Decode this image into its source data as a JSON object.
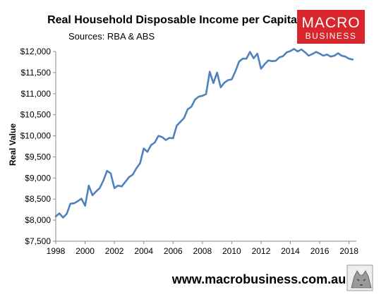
{
  "chart_data": {
    "type": "line",
    "title": "Real Household Disposable Income per Capita",
    "subtitle": "Sources: RBA & ABS",
    "ylabel": "Real Value",
    "xlabel": "",
    "xlim": [
      1998,
      2018.5
    ],
    "ylim": [
      7500,
      12000
    ],
    "x_ticks": [
      1998,
      2000,
      2002,
      2004,
      2006,
      2008,
      2010,
      2012,
      2014,
      2016,
      2018
    ],
    "y_ticks": [
      7500,
      8000,
      8500,
      9000,
      9500,
      10000,
      10500,
      11000,
      11500,
      12000
    ],
    "y_tick_labels": [
      "$7,500",
      "$8,000",
      "$8,500",
      "$9,000",
      "$9,500",
      "$10,000",
      "$10,500",
      "$11,000",
      "$11,500",
      "$12,000"
    ],
    "grid": false,
    "legend": "none",
    "series": [
      {
        "color": "#4f81bd",
        "x": [
          1998.0,
          1998.25,
          1998.5,
          1998.75,
          1999.0,
          1999.25,
          1999.5,
          1999.75,
          2000.0,
          2000.25,
          2000.5,
          2000.75,
          2001.0,
          2001.25,
          2001.5,
          2001.75,
          2002.0,
          2002.25,
          2002.5,
          2002.75,
          2003.0,
          2003.25,
          2003.5,
          2003.75,
          2004.0,
          2004.25,
          2004.5,
          2004.75,
          2005.0,
          2005.25,
          2005.5,
          2005.75,
          2006.0,
          2006.25,
          2006.5,
          2006.75,
          2007.0,
          2007.25,
          2007.5,
          2007.75,
          2008.0,
          2008.25,
          2008.5,
          2008.75,
          2009.0,
          2009.25,
          2009.5,
          2009.75,
          2010.0,
          2010.25,
          2010.5,
          2010.75,
          2011.0,
          2011.25,
          2011.5,
          2011.75,
          2012.0,
          2012.25,
          2012.5,
          2012.75,
          2013.0,
          2013.25,
          2013.5,
          2013.75,
          2014.0,
          2014.25,
          2014.5,
          2014.75,
          2015.0,
          2015.25,
          2015.5,
          2015.75,
          2016.0,
          2016.25,
          2016.5,
          2016.75,
          2017.0,
          2017.25,
          2017.5,
          2017.75,
          2018.0,
          2018.25
        ],
        "values": [
          8090,
          8160,
          8060,
          8150,
          8390,
          8400,
          8450,
          8510,
          8340,
          8820,
          8590,
          8680,
          8760,
          8940,
          9170,
          9110,
          8760,
          8820,
          8800,
          8910,
          9020,
          9080,
          9230,
          9350,
          9700,
          9620,
          9780,
          9840,
          10000,
          9970,
          9900,
          9950,
          9940,
          10240,
          10330,
          10420,
          10630,
          10690,
          10860,
          10930,
          10950,
          10990,
          11520,
          11250,
          11500,
          11150,
          11260,
          11320,
          11340,
          11530,
          11760,
          11830,
          11830,
          11990,
          11840,
          11950,
          11590,
          11700,
          11790,
          11770,
          11780,
          11860,
          11890,
          11980,
          12010,
          12060,
          12000,
          12050,
          11980,
          11900,
          11940,
          11990,
          11950,
          11900,
          11930,
          11880,
          11900,
          11960,
          11900,
          11880,
          11830,
          11810
        ]
      }
    ]
  },
  "branding": {
    "logo_line1": "MACRO",
    "logo_line2": "BUSINESS",
    "logo_color": "#d9262c",
    "url": "www.macrobusiness.com.au"
  }
}
